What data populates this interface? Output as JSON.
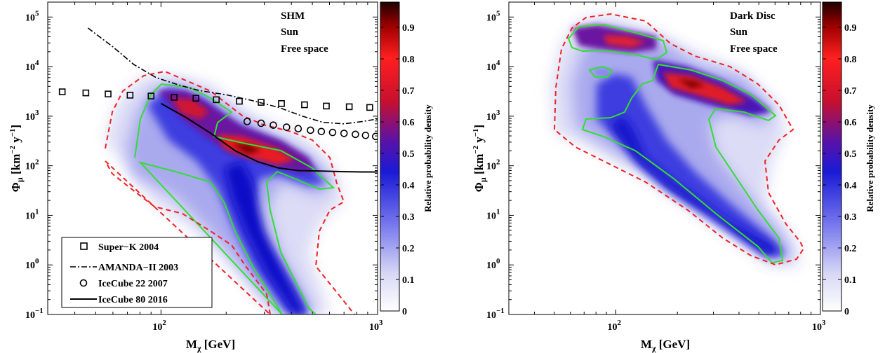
{
  "chart_data": [
    {
      "type": "heatmap",
      "panel": "left",
      "annotation": [
        "SHM",
        "Sun",
        "Free space"
      ],
      "xlabel": "M_χ [GeV]",
      "ylabel": "Φ_μ [km^-2 y^-1]",
      "xscale": "log",
      "yscale": "log",
      "xlim": [
        30,
        1000
      ],
      "ylim": [
        0.1,
        200000
      ],
      "x_ticks": [
        100,
        1000
      ],
      "y_ticks": [
        0.1,
        1,
        10,
        100,
        1000,
        10000,
        100000
      ],
      "colorbar": {
        "label": "Relative probability density",
        "range": [
          0,
          0.98
        ],
        "ticks": [
          "0",
          "0.1",
          "0.2",
          "0.3",
          "0.4",
          "0.5",
          "0.6",
          "0.7",
          "0.8",
          "0.9"
        ]
      },
      "series": [
        {
          "name": "Super−K 2004",
          "style": "squares",
          "x": [
            35,
            45,
            57,
            72,
            90,
            115,
            145,
            180,
            230,
            290,
            360,
            460,
            580,
            740,
            920
          ],
          "y": [
            3100,
            2950,
            2800,
            2650,
            2550,
            2400,
            2300,
            2150,
            2000,
            1900,
            1800,
            1700,
            1600,
            1550,
            1500
          ]
        },
        {
          "name": "AMANDA−II 2003",
          "style": "dash-dot",
          "x": [
            46,
            60,
            75,
            95,
            120,
            150,
            200,
            260,
            350,
            450,
            560,
            700,
            850,
            1000
          ],
          "y": [
            60000,
            25000,
            11000,
            6000,
            4300,
            3300,
            2700,
            2100,
            1500,
            1000,
            750,
            700,
            780,
            880
          ]
        },
        {
          "name": "IceCube 22 2007",
          "style": "circles",
          "x": [
            250,
            290,
            330,
            380,
            430,
            490,
            550,
            620,
            700,
            790,
            880,
            980
          ],
          "y": [
            780,
            720,
            660,
            600,
            560,
            520,
            490,
            470,
            450,
            430,
            410,
            390
          ]
        },
        {
          "name": "IceCube 80 2016",
          "style": "solid",
          "x": [
            100,
            130,
            170,
            220,
            280,
            350,
            430,
            550,
            700,
            850,
            1000
          ],
          "y": [
            1800,
            950,
            450,
            200,
            120,
            90,
            80,
            78,
            76,
            75,
            75
          ]
        }
      ]
    },
    {
      "type": "heatmap",
      "panel": "right",
      "annotation": [
        "Dark Disc",
        "Sun",
        "Free space"
      ],
      "xlabel": "M_χ [GeV]",
      "ylabel": "Φ_μ [km^-2 y^-1]",
      "xscale": "log",
      "yscale": "log",
      "xlim": [
        30,
        1000
      ],
      "ylim": [
        0.1,
        200000
      ],
      "x_ticks": [
        100,
        1000
      ],
      "y_ticks": [
        0.1,
        1,
        10,
        100,
        1000,
        10000,
        100000
      ],
      "colorbar": {
        "label": "Relative probability density",
        "range": [
          0,
          0.98
        ],
        "ticks": [
          "0",
          "0.1",
          "0.2",
          "0.3",
          "0.4",
          "0.5",
          "0.6",
          "0.7",
          "0.8",
          "0.9"
        ]
      }
    }
  ]
}
